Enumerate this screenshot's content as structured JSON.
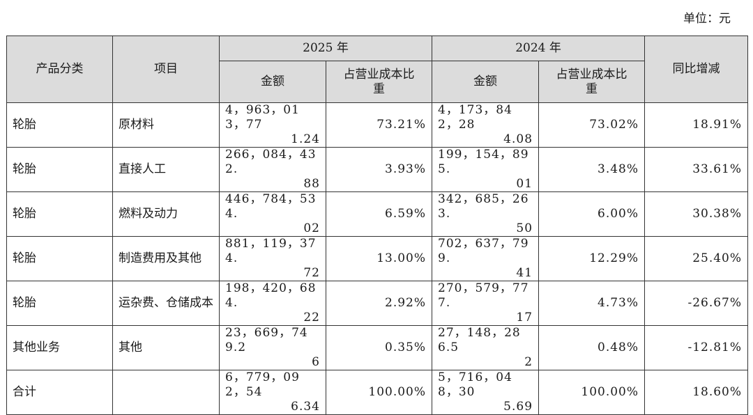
{
  "unit_label": "单位：元",
  "headers": {
    "category": "产品分类",
    "item": "项目",
    "year_2025": "2025 年",
    "year_2024": "2024 年",
    "amount": "金额",
    "share_line1": "占营业成本比",
    "share_line2": "重",
    "yoy": "同比增减"
  },
  "rows": [
    {
      "category": "轮胎",
      "item": "原材料",
      "amt2025_l1": "4，963，013，77",
      "amt2025_l2": "1.24",
      "pct2025": "73.21%",
      "amt2024_l1": "4，173，842，28",
      "amt2024_l2": "4.08",
      "pct2024": "73.02%",
      "yoy": "18.91%"
    },
    {
      "category": "轮胎",
      "item": "直接人工",
      "amt2025_l1": "266，084，432.",
      "amt2025_l2": "88",
      "pct2025": "3.93%",
      "amt2024_l1": "199，154，895.",
      "amt2024_l2": "01",
      "pct2024": "3.48%",
      "yoy": "33.61%"
    },
    {
      "category": "轮胎",
      "item": "燃料及动力",
      "amt2025_l1": "446，784，534.",
      "amt2025_l2": "02",
      "pct2025": "6.59%",
      "amt2024_l1": "342，685，263.",
      "amt2024_l2": "50",
      "pct2024": "6.00%",
      "yoy": "30.38%"
    },
    {
      "category": "轮胎",
      "item": "制造费用及其他",
      "amt2025_l1": "881，119，374.",
      "amt2025_l2": "72",
      "pct2025": "13.00%",
      "amt2024_l1": "702，637，799.",
      "amt2024_l2": "41",
      "pct2024": "12.29%",
      "yoy": "25.40%"
    },
    {
      "category": "轮胎",
      "item": "运杂费、仓储成本",
      "amt2025_l1": "198，420，684.",
      "amt2025_l2": "22",
      "pct2025": "2.92%",
      "amt2024_l1": "270，579，777.",
      "amt2024_l2": "17",
      "pct2024": "4.73%",
      "yoy": "-26.67%"
    },
    {
      "category": "其他业务",
      "item": "其他",
      "amt2025_l1": "23，669，749.2",
      "amt2025_l2": "6",
      "pct2025": "0.35%",
      "amt2024_l1": "27，148，286.5",
      "amt2024_l2": "2",
      "pct2024": "0.48%",
      "yoy": "-12.81%"
    },
    {
      "category": "合计",
      "item": "",
      "amt2025_l1": "6，779，092，54",
      "amt2025_l2": "6.34",
      "pct2025": "100.00%",
      "amt2024_l1": "5，716，048，30",
      "amt2024_l2": "5.69",
      "pct2024": "100.00%",
      "yoy": "18.60%"
    }
  ]
}
